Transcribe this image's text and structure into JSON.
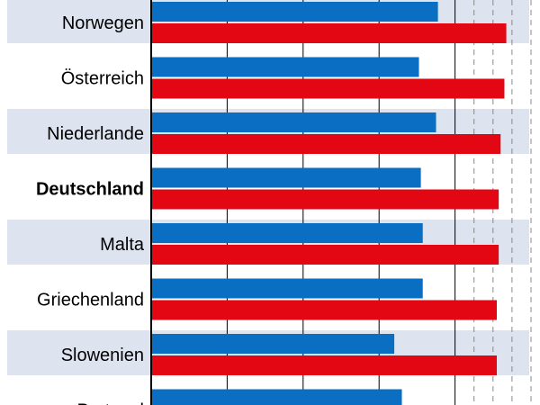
{
  "chart_data": {
    "type": "bar",
    "orientation": "horizontal",
    "grid": true,
    "categories": [
      "Norwegen",
      "Österreich",
      "Niederlande",
      "Deutschland",
      "Malta",
      "Griechenland",
      "Slowenien",
      "Portugal"
    ],
    "highlight_category": "Deutschland",
    "x_range": [
      0,
      100
    ],
    "series": [
      {
        "color": "#0a6fc2",
        "values": [
          75.5,
          70.5,
          75.0,
          71.0,
          71.5,
          71.5,
          64.0,
          66.0
        ]
      },
      {
        "color": "#e30613",
        "values": [
          93.5,
          93.0,
          92.0,
          91.5,
          91.5,
          91.0,
          91.0,
          null
        ]
      }
    ]
  },
  "colors": {
    "row_band": "#dde4f0",
    "gridline": "#000000",
    "gridline_dashed": "#888888",
    "axis": "#000000"
  }
}
